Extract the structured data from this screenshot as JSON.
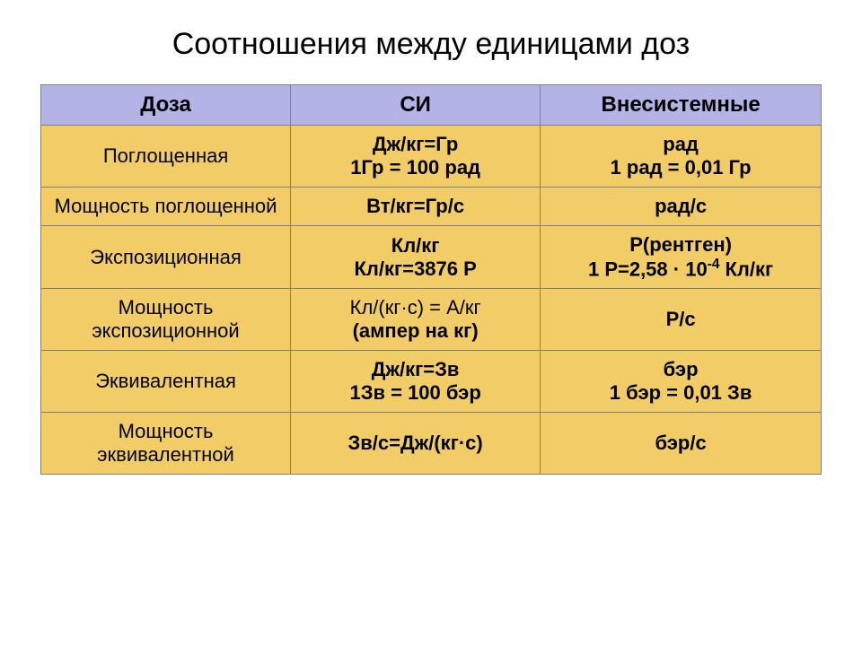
{
  "title": "Соотношения между единицами доз",
  "table": {
    "columns": [
      "Доза",
      "СИ",
      "Внесистемные"
    ],
    "header_bg": "#b3b3e6",
    "cell_bg": "#f2cc66",
    "border_color": "#808080",
    "header_fontsize": 24,
    "cell_fontsize": 22,
    "rows": [
      {
        "label": "Поглощенная",
        "si_l1": "Дж/кг=Гр",
        "si_l2": "1Гр = 100 рад",
        "si_bold": true,
        "ns_l1": "рад",
        "ns_l2": "1 рад = 0,01 Гр",
        "ns_bold": true
      },
      {
        "label": "Мощность поглощенной",
        "si_l1": "Вт/кг=Гр/с",
        "si_l2": "",
        "si_bold": true,
        "ns_l1": "рад/с",
        "ns_l2": "",
        "ns_bold": true
      },
      {
        "label": "Экспозиционная",
        "si_l1": "Кл/кг",
        "si_l2": "Кл/кг=3876 Р",
        "si_bold": true,
        "ns_l1": "Р(рентген)",
        "ns_l2_html": "1 Р=2,58 · 10<sup>-4</sup> Кл/кг",
        "ns_bold": true
      },
      {
        "label": "Мощность экспозиционной",
        "si_l1_html": "<span class='normal'>Кл/(кг·с) = А/кг</span>",
        "si_l2": "(ампер на кг)",
        "si_bold": true,
        "ns_l1": "Р/с",
        "ns_l2": "",
        "ns_bold": true
      },
      {
        "label": "Эквивалентная",
        "si_l1": "Дж/кг=Зв",
        "si_l2": "1Зв = 100 бэр",
        "si_bold": true,
        "ns_l1": "бэр",
        "ns_l2": "1 бэр = 0,01 Зв",
        "ns_bold": true
      },
      {
        "label": "Мощность эквивалентной",
        "si_l1": "Зв/с=Дж/(кг·с)",
        "si_l2": "",
        "si_bold": true,
        "ns_l1": "бэр/с",
        "ns_l2": "",
        "ns_bold": true
      }
    ]
  }
}
